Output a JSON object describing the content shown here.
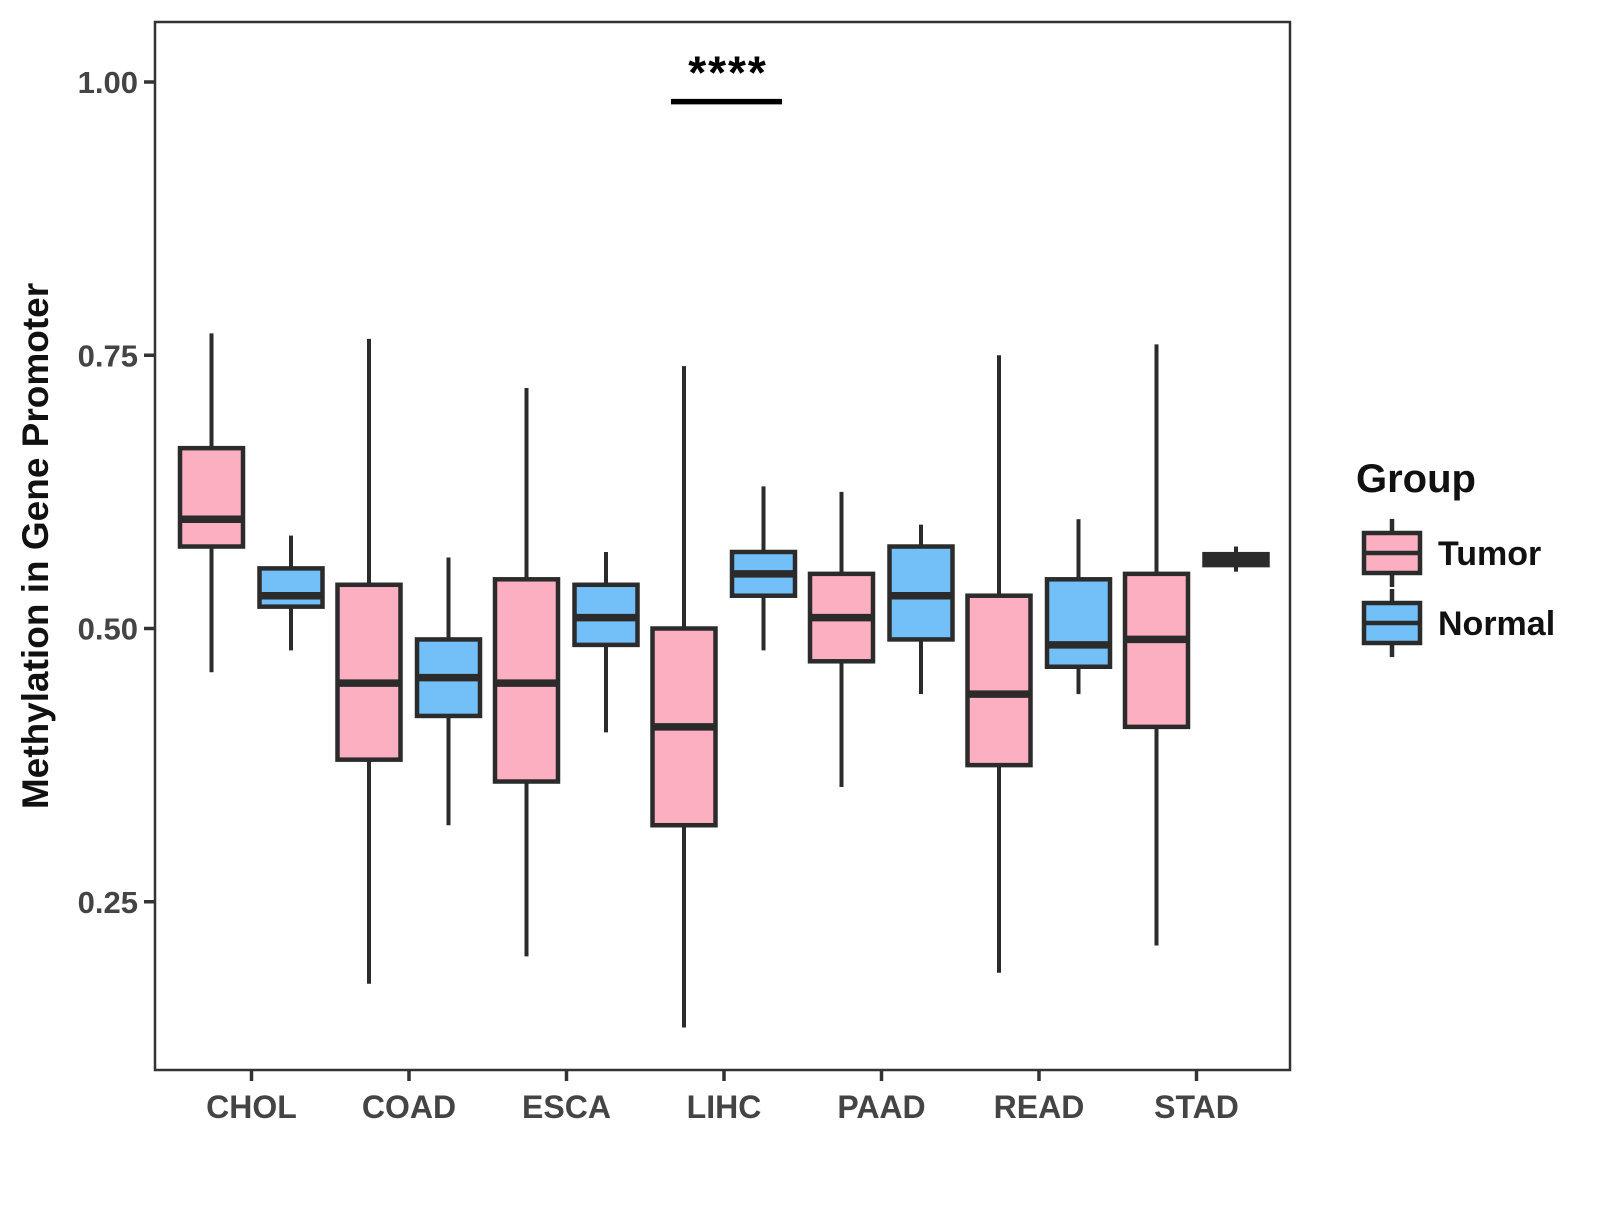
{
  "chart_data": {
    "type": "grouped_boxplot",
    "title": "",
    "xlabel": "",
    "ylabel": "Methylation in Gene Promoter",
    "categories": [
      "CHOL",
      "COAD",
      "ESCA",
      "LIHC",
      "PAAD",
      "READ",
      "STAD"
    ],
    "y_ticks": [
      0.25,
      0.5,
      0.75,
      1.0
    ],
    "y_tick_labels": [
      "0.25",
      "0.50",
      "0.75",
      "1.00"
    ],
    "ylim": [
      0.095,
      1.055
    ],
    "grid": false,
    "legend": {
      "title": "Group",
      "position": "right",
      "entries": [
        {
          "label": "Tumor",
          "fill": "#FBAFC0"
        },
        {
          "label": "Normal",
          "fill": "#73BFF7"
        }
      ]
    },
    "annotation": {
      "text": "****",
      "category": "LIHC",
      "text_y": 0.994,
      "bar_y": 0.982
    },
    "series": [
      {
        "name": "Tumor",
        "fill": "#FBAFC0",
        "boxes": [
          {
            "category": "CHOL",
            "whisker_low": 0.46,
            "q1": 0.575,
            "median": 0.6,
            "q3": 0.665,
            "whisker_high": 0.77
          },
          {
            "category": "COAD",
            "whisker_low": 0.175,
            "q1": 0.38,
            "median": 0.45,
            "q3": 0.54,
            "whisker_high": 0.765
          },
          {
            "category": "ESCA",
            "whisker_low": 0.2,
            "q1": 0.36,
            "median": 0.45,
            "q3": 0.545,
            "whisker_high": 0.72
          },
          {
            "category": "LIHC",
            "whisker_low": 0.135,
            "q1": 0.32,
            "median": 0.41,
            "q3": 0.5,
            "whisker_high": 0.74
          },
          {
            "category": "PAAD",
            "whisker_low": 0.355,
            "q1": 0.47,
            "median": 0.51,
            "q3": 0.55,
            "whisker_high": 0.625
          },
          {
            "category": "READ",
            "whisker_low": 0.185,
            "q1": 0.375,
            "median": 0.44,
            "q3": 0.53,
            "whisker_high": 0.75
          },
          {
            "category": "STAD",
            "whisker_low": 0.21,
            "q1": 0.41,
            "median": 0.49,
            "q3": 0.55,
            "whisker_high": 0.76
          }
        ]
      },
      {
        "name": "Normal",
        "fill": "#73BFF7",
        "boxes": [
          {
            "category": "CHOL",
            "whisker_low": 0.48,
            "q1": 0.52,
            "median": 0.53,
            "q3": 0.555,
            "whisker_high": 0.585
          },
          {
            "category": "COAD",
            "whisker_low": 0.32,
            "q1": 0.42,
            "median": 0.455,
            "q3": 0.49,
            "whisker_high": 0.565
          },
          {
            "category": "ESCA",
            "whisker_low": 0.405,
            "q1": 0.485,
            "median": 0.51,
            "q3": 0.54,
            "whisker_high": 0.57
          },
          {
            "category": "LIHC",
            "whisker_low": 0.48,
            "q1": 0.53,
            "median": 0.55,
            "q3": 0.57,
            "whisker_high": 0.63
          },
          {
            "category": "PAAD",
            "whisker_low": 0.44,
            "q1": 0.49,
            "median": 0.53,
            "q3": 0.575,
            "whisker_high": 0.595
          },
          {
            "category": "READ",
            "whisker_low": 0.44,
            "q1": 0.465,
            "median": 0.485,
            "q3": 0.545,
            "whisker_high": 0.6
          },
          {
            "category": "STAD",
            "whisker_low": 0.552,
            "q1": 0.558,
            "median": 0.563,
            "q3": 0.568,
            "whisker_high": 0.575
          }
        ]
      }
    ],
    "colors": {
      "box_border": "#2B2B2B",
      "axis_line": "#333333",
      "axis_text": "#444444",
      "title_text": "#111111",
      "annotation": "#000000",
      "background": "#FFFFFF"
    }
  }
}
